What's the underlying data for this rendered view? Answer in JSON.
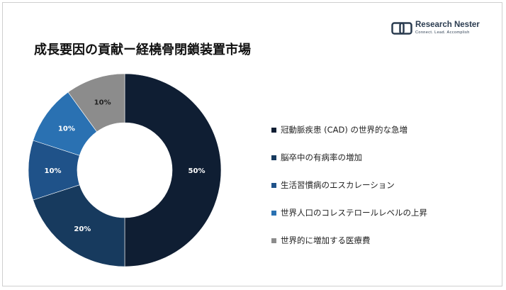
{
  "logo": {
    "name": "Research Nester",
    "tagline": "Connect. Lead. Accomplish",
    "icon": "research-nester-logo-icon"
  },
  "chart_data": {
    "type": "pie",
    "donut": true,
    "title": "成長要因の貢献ー経橈骨閉鎖装置市場",
    "legend_position": "right",
    "categories": [
      "冠動脈疾患 (CAD) の世界的な急増",
      "脳卒中の有病率の増加",
      "生活習慣病のエスカレーション",
      "世界人口のコレステロールレベルの上昇",
      "世界的に増加する医療費"
    ],
    "values": [
      50,
      20,
      10,
      10,
      10
    ],
    "value_labels": [
      "50%",
      "20%",
      "10%",
      "10%",
      "10%"
    ],
    "colors": [
      "#0f1e33",
      "#173a5e",
      "#1f5289",
      "#2a71b2",
      "#8c8c8c"
    ],
    "label_colors": [
      "#ffffff",
      "#ffffff",
      "#ffffff",
      "#ffffff",
      "#222222"
    ]
  }
}
